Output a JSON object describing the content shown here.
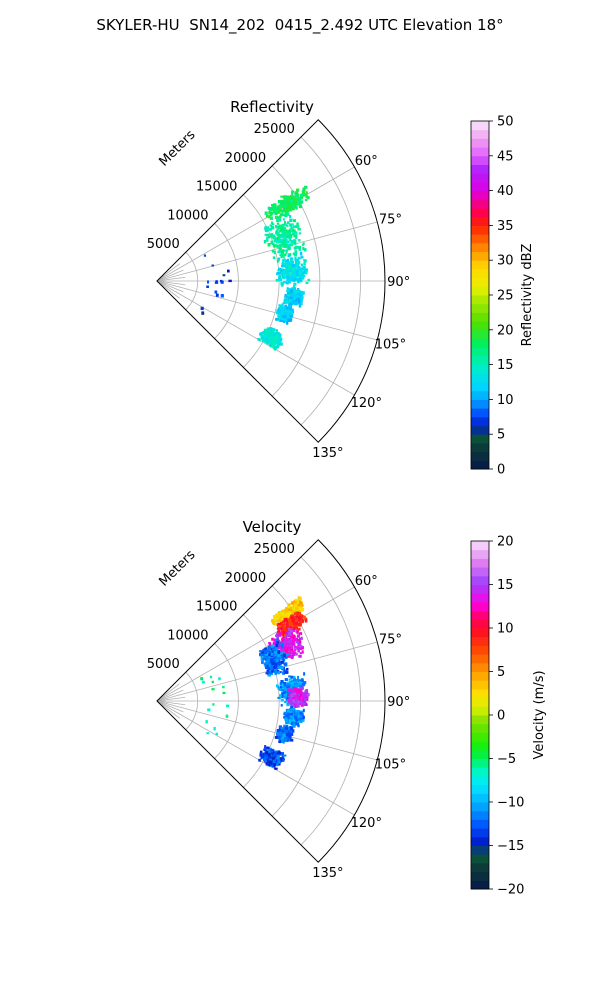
{
  "figure": {
    "title": "SKYLER-HU  SN14_202  0415_2.492 UTC Elevation 18°"
  },
  "chart_data": [
    {
      "type": "heatmap",
      "subtype": "polar-ppi-sector",
      "title": "Reflectivity",
      "range_label": "Meters",
      "range_ticks": [
        5000,
        10000,
        15000,
        20000,
        25000
      ],
      "range_max": 28000,
      "azimuth_range_deg": [
        45,
        135
      ],
      "azimuth_ticks": [
        "60°",
        "75°",
        "90°",
        "105°",
        "120°",
        "135°"
      ],
      "azimuth_tick_values": [
        60,
        75,
        90,
        105,
        120,
        135
      ],
      "grid": true,
      "colorbar": {
        "label": "Reflectivity dBZ",
        "min": 0,
        "max": 50,
        "ticks": [
          "0",
          "5",
          "10",
          "15",
          "20",
          "25",
          "30",
          "35",
          "40",
          "45",
          "50"
        ]
      },
      "echo_regions": [
        {
          "az": [
            55,
            62
          ],
          "r": [
            15500,
            22000
          ],
          "value": 18
        },
        {
          "az": [
            60,
            80
          ],
          "r": [
            14000,
            19000
          ],
          "value": 16
        },
        {
          "az": [
            78,
            92
          ],
          "r": [
            14500,
            18500
          ],
          "value": 13
        },
        {
          "az": [
            92,
            100
          ],
          "r": [
            15500,
            18000
          ],
          "value": 12
        },
        {
          "az": [
            100,
            108
          ],
          "r": [
            15000,
            17000
          ],
          "value": 12
        },
        {
          "az": [
            112,
            120
          ],
          "r": [
            14000,
            17000
          ],
          "value": 14
        },
        {
          "az": [
            60,
            125
          ],
          "r": [
            6000,
            9000
          ],
          "value": 7
        }
      ]
    },
    {
      "type": "heatmap",
      "subtype": "polar-ppi-sector",
      "title": "Velocity",
      "range_label": "Meters",
      "range_ticks": [
        5000,
        10000,
        15000,
        20000,
        25000
      ],
      "range_max": 28000,
      "azimuth_range_deg": [
        45,
        135
      ],
      "azimuth_ticks": [
        "60°",
        "75°",
        "90°",
        "105°",
        "120°",
        "135°"
      ],
      "azimuth_tick_values": [
        60,
        75,
        90,
        105,
        120,
        135
      ],
      "grid": true,
      "colorbar": {
        "label": "Velocity (m/s)",
        "min": -20,
        "max": 20,
        "ticks": [
          "−20",
          "−15",
          "−10",
          "−5",
          "0",
          "5",
          "10",
          "15",
          "20"
        ]
      },
      "echo_regions": [
        {
          "az": [
            53,
            58
          ],
          "r": [
            17000,
            22000
          ],
          "value": 3
        },
        {
          "az": [
            56,
            63
          ],
          "r": [
            17000,
            21000
          ],
          "value": 9
        },
        {
          "az": [
            60,
            72
          ],
          "r": [
            15000,
            19500
          ],
          "value": 14
        },
        {
          "az": [
            62,
            78
          ],
          "r": [
            13500,
            17000
          ],
          "value": -12
        },
        {
          "az": [
            78,
            92
          ],
          "r": [
            14500,
            18500
          ],
          "value": -11
        },
        {
          "az": [
            84,
            92
          ],
          "r": [
            16000,
            18500
          ],
          "value": 14
        },
        {
          "az": [
            92,
            100
          ],
          "r": [
            15500,
            18000
          ],
          "value": -11
        },
        {
          "az": [
            100,
            108
          ],
          "r": [
            15000,
            17000
          ],
          "value": -12
        },
        {
          "az": [
            112,
            120
          ],
          "r": [
            14000,
            17000
          ],
          "value": -13
        },
        {
          "az": [
            60,
            125
          ],
          "r": [
            6000,
            9000
          ],
          "value": -6
        }
      ]
    }
  ],
  "colors": {
    "grid": "#b0b0b0",
    "frame": "#000000"
  }
}
